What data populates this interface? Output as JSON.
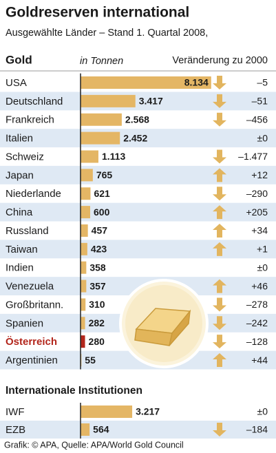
{
  "chart_data": [
    {
      "type": "bar",
      "title": "Goldreserven international",
      "subtitle": "Ausgewählte Länder – Stand 1. Quartal 2008,",
      "label_header": "Gold",
      "unit": "in Tonnen",
      "change_header": "Veränderung zu 2000",
      "categories": [
        "USA",
        "Deutschland",
        "Frankreich",
        "Italien",
        "Schweiz",
        "Japan",
        "Niederlande",
        "China",
        "Russland",
        "Taiwan",
        "Indien",
        "Venezuela",
        "Großbritann.",
        "Spanien",
        "Österreich",
        "Argentinien"
      ],
      "values": [
        8134,
        3417,
        2568,
        2452,
        1113,
        765,
        621,
        600,
        457,
        423,
        358,
        357,
        310,
        282,
        280,
        55
      ],
      "value_labels": [
        "8.134",
        "3.417",
        "2.568",
        "2.452",
        "1.113",
        "765",
        "621",
        "600",
        "457",
        "423",
        "358",
        "357",
        "310",
        "282",
        "280",
        "55"
      ],
      "color": "#e4b665",
      "colors": [
        "#e4b665",
        "#e4b665",
        "#e4b665",
        "#e4b665",
        "#e4b665",
        "#e4b665",
        "#e4b665",
        "#e4b665",
        "#e4b665",
        "#e4b665",
        "#e4b665",
        "#e4b665",
        "#e4b665",
        "#e4b665",
        "#b3261c",
        "#e4b665"
      ],
      "changes": [
        -5,
        -51,
        -456,
        0,
        -1477,
        12,
        -290,
        205,
        34,
        1,
        0,
        46,
        -278,
        -242,
        -128,
        44
      ],
      "change_labels": [
        "–5",
        "–51",
        "–456",
        "±0",
        "–1.477",
        "+12",
        "–290",
        "+205",
        "+34",
        "+1",
        "±0",
        "+46",
        "–278",
        "–242",
        "–128",
        "+44"
      ],
      "xlim": [
        0,
        8700
      ]
    },
    {
      "type": "bar",
      "title": "Internationale Institutionen",
      "categories": [
        "IWF",
        "EZB"
      ],
      "values": [
        3217,
        564
      ],
      "value_labels": [
        "3.217",
        "564"
      ],
      "color": "#e4b665",
      "colors": [
        "#e4b665",
        "#e4b665"
      ],
      "changes": [
        0,
        -184
      ],
      "change_labels": [
        "±0",
        "–184"
      ],
      "xlim": [
        0,
        8700
      ]
    }
  ],
  "footer": "Grafik: © APA, Quelle: APA/World Gold Council"
}
